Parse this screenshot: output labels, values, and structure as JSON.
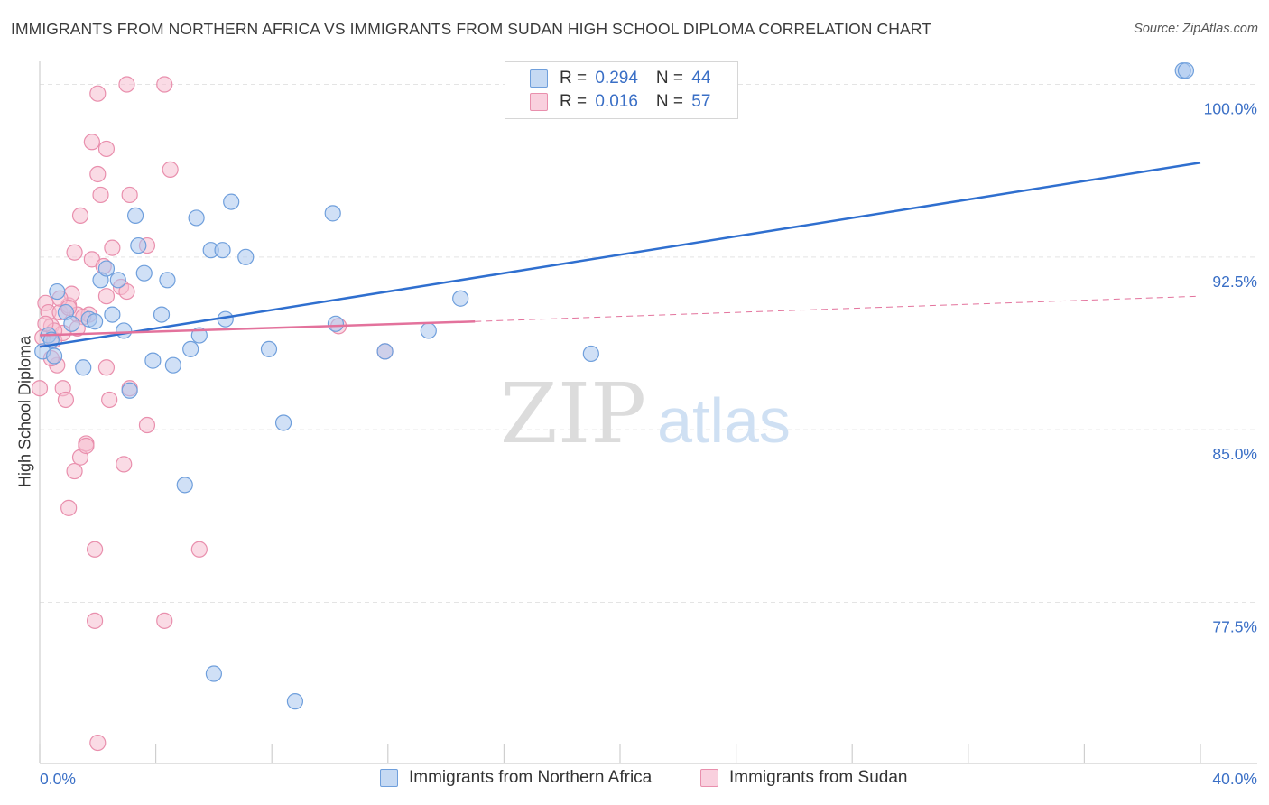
{
  "header": {
    "title": "IMMIGRANTS FROM NORTHERN AFRICA VS IMMIGRANTS FROM SUDAN HIGH SCHOOL DIPLOMA CORRELATION CHART",
    "source": "Source: ZipAtlas.com"
  },
  "watermark": {
    "zip": "ZIP",
    "atlas": "atlas"
  },
  "colors": {
    "blue_fill": "#a9c6ee",
    "blue_stroke": "#6f9fdc",
    "blue_line": "#2f6fcf",
    "pink_fill": "#f6bdd0",
    "pink_stroke": "#e98fad",
    "pink_line": "#e3729c",
    "axis_text": "#3a6fc6",
    "grid": "#e4e4e4"
  },
  "legend": {
    "rows": [
      {
        "r_label": "R = ",
        "r_value": "0.294",
        "n_label": "N = ",
        "n_value": "44",
        "color": "blue"
      },
      {
        "r_label": "R = ",
        "r_value": "0.016",
        "n_label": "N = ",
        "n_value": "57",
        "color": "pink"
      }
    ]
  },
  "bottom_legend": [
    {
      "label": "Immigrants from Northern Africa",
      "color": "blue"
    },
    {
      "label": "Immigrants from Sudan",
      "color": "pink"
    }
  ],
  "chart_data": {
    "type": "scatter",
    "title": "IMMIGRANTS FROM NORTHERN AFRICA VS IMMIGRANTS FROM SUDAN HIGH SCHOOL DIPLOMA CORRELATION CHART",
    "xlabel": "",
    "ylabel": "High School Diploma",
    "xlim": [
      0,
      40
    ],
    "ylim": [
      70.5,
      101.0
    ],
    "x_ticks": [
      0,
      40
    ],
    "x_tick_labels": [
      "0.0%",
      "40.0%"
    ],
    "y_ticks": [
      77.5,
      85.0,
      92.5,
      100.0
    ],
    "y_tick_labels": [
      "77.5%",
      "85.0%",
      "92.5%",
      "100.0%"
    ],
    "grid": true,
    "legend_position": "top-center",
    "series": [
      {
        "name": "Immigrants from Northern Africa",
        "color": "blue",
        "points": [
          [
            0.1,
            88.4
          ],
          [
            0.3,
            89.1
          ],
          [
            0.4,
            88.9
          ],
          [
            0.5,
            88.2
          ],
          [
            0.6,
            91.0
          ],
          [
            0.9,
            90.1
          ],
          [
            1.1,
            89.6
          ],
          [
            1.5,
            87.7
          ],
          [
            1.7,
            89.8
          ],
          [
            1.9,
            89.7
          ],
          [
            2.1,
            91.5
          ],
          [
            2.3,
            92.0
          ],
          [
            2.5,
            90.0
          ],
          [
            2.7,
            91.5
          ],
          [
            2.9,
            89.3
          ],
          [
            3.1,
            86.7
          ],
          [
            3.3,
            94.3
          ],
          [
            3.4,
            93.0
          ],
          [
            3.6,
            91.8
          ],
          [
            3.9,
            88.0
          ],
          [
            4.2,
            90.0
          ],
          [
            4.4,
            91.5
          ],
          [
            4.6,
            87.8
          ],
          [
            5.0,
            82.6
          ],
          [
            5.2,
            88.5
          ],
          [
            5.4,
            94.2
          ],
          [
            5.5,
            89.1
          ],
          [
            5.9,
            92.8
          ],
          [
            6.0,
            74.4
          ],
          [
            6.3,
            92.8
          ],
          [
            6.4,
            89.8
          ],
          [
            6.6,
            94.9
          ],
          [
            7.1,
            92.5
          ],
          [
            7.9,
            88.5
          ],
          [
            8.4,
            85.3
          ],
          [
            8.8,
            73.2
          ],
          [
            10.1,
            94.4
          ],
          [
            10.2,
            89.6
          ],
          [
            11.9,
            88.4
          ],
          [
            13.4,
            89.3
          ],
          [
            14.5,
            90.7
          ],
          [
            19.0,
            88.3
          ],
          [
            39.4,
            100.6
          ],
          [
            39.5,
            100.6
          ]
        ]
      },
      {
        "name": "Immigrants from Sudan",
        "color": "pink",
        "points": [
          [
            0.0,
            86.8
          ],
          [
            0.1,
            89.0
          ],
          [
            0.2,
            90.5
          ],
          [
            0.3,
            90.1
          ],
          [
            0.4,
            89.5
          ],
          [
            0.5,
            88.9
          ],
          [
            0.6,
            87.8
          ],
          [
            0.7,
            90.1
          ],
          [
            0.8,
            89.2
          ],
          [
            0.8,
            86.8
          ],
          [
            0.9,
            86.3
          ],
          [
            1.0,
            90.4
          ],
          [
            1.0,
            81.6
          ],
          [
            1.1,
            90.9
          ],
          [
            1.2,
            92.7
          ],
          [
            1.2,
            83.2
          ],
          [
            1.3,
            90.0
          ],
          [
            1.4,
            83.8
          ],
          [
            1.4,
            94.3
          ],
          [
            1.6,
            84.4
          ],
          [
            1.6,
            84.3
          ],
          [
            1.7,
            90.0
          ],
          [
            1.8,
            92.4
          ],
          [
            1.8,
            97.5
          ],
          [
            1.9,
            79.8
          ],
          [
            1.9,
            76.7
          ],
          [
            2.0,
            96.1
          ],
          [
            2.0,
            99.6
          ],
          [
            2.0,
            71.4
          ],
          [
            2.1,
            95.2
          ],
          [
            2.2,
            92.1
          ],
          [
            2.3,
            97.2
          ],
          [
            2.3,
            90.8
          ],
          [
            2.3,
            87.7
          ],
          [
            2.4,
            86.3
          ],
          [
            2.5,
            92.9
          ],
          [
            2.8,
            91.2
          ],
          [
            2.9,
            83.5
          ],
          [
            3.0,
            91.0
          ],
          [
            3.0,
            100.0
          ],
          [
            3.1,
            86.8
          ],
          [
            3.1,
            95.2
          ],
          [
            3.7,
            93.0
          ],
          [
            3.7,
            85.2
          ],
          [
            4.3,
            76.7
          ],
          [
            4.3,
            100.0
          ],
          [
            4.5,
            96.3
          ],
          [
            5.5,
            79.8
          ],
          [
            10.3,
            89.5
          ],
          [
            11.9,
            88.4
          ],
          [
            0.5,
            89.3
          ],
          [
            0.7,
            90.7
          ],
          [
            1.0,
            90.3
          ],
          [
            1.5,
            89.9
          ],
          [
            0.2,
            89.6
          ],
          [
            0.4,
            88.1
          ],
          [
            1.3,
            89.4
          ]
        ]
      }
    ],
    "trend_lines": [
      {
        "series": "Immigrants from Northern Africa",
        "x": [
          0,
          40
        ],
        "y": [
          88.6,
          96.6
        ],
        "style": "solid"
      },
      {
        "series": "Immigrants from Sudan",
        "x": [
          0,
          15
        ],
        "y": [
          89.1,
          89.7
        ],
        "style": "solid"
      },
      {
        "series": "Immigrants from Sudan",
        "x": [
          15,
          40
        ],
        "y": [
          89.7,
          90.8
        ],
        "style": "dashed"
      }
    ]
  }
}
